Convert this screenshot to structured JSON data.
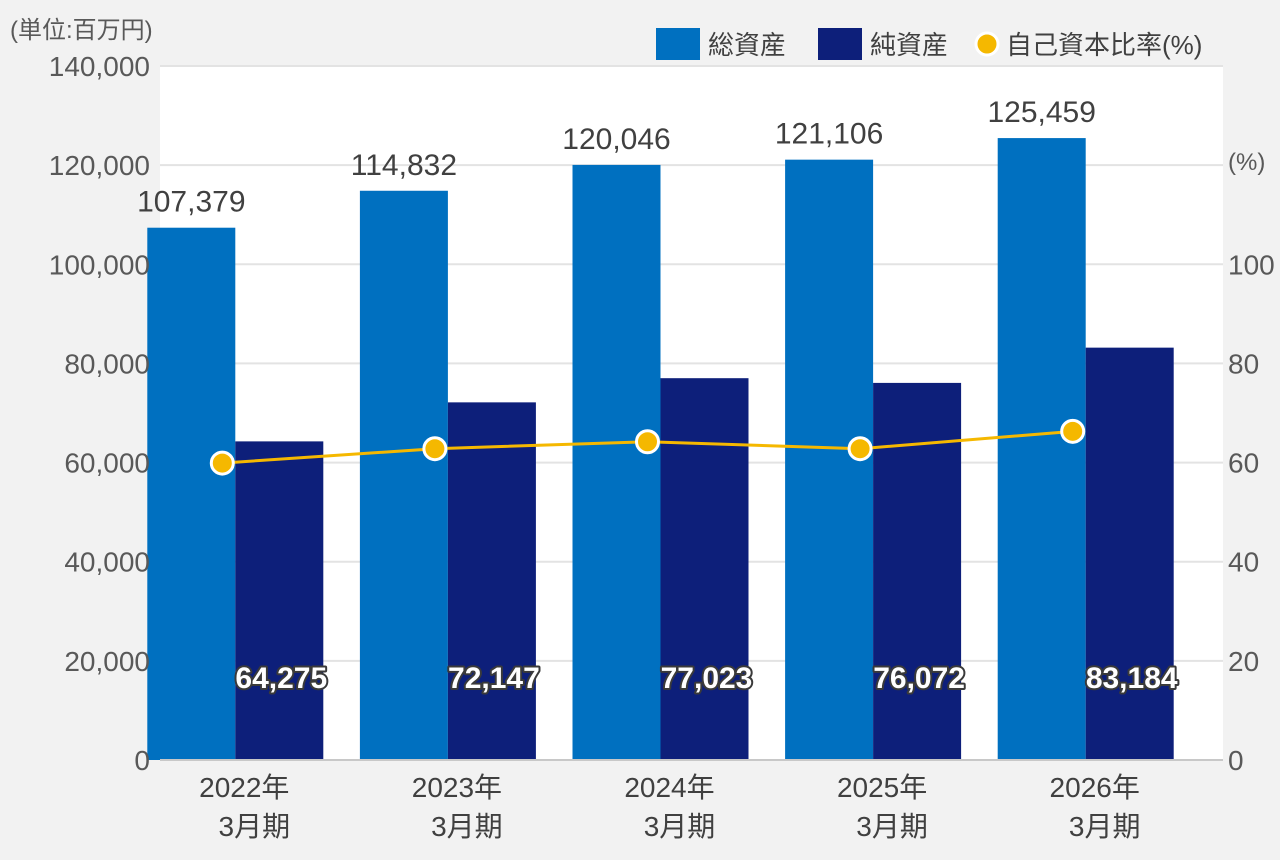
{
  "chart_data": {
    "type": "bar",
    "unit_label": "(単位:百万円)",
    "right_unit_label": "(%)",
    "categories": [
      [
        "2022年",
        "3月期"
      ],
      [
        "2023年",
        "3月期"
      ],
      [
        "2024年",
        "3月期"
      ],
      [
        "2025年",
        "3月期"
      ],
      [
        "2026年",
        "3月期"
      ]
    ],
    "series": [
      {
        "name": "総資産",
        "type": "bar",
        "axis": "left",
        "color": "#0070c0",
        "values": [
          107379,
          114832,
          120046,
          121106,
          125459
        ],
        "labels": [
          "107,379",
          "114,832",
          "120,046",
          "121,106",
          "125,459"
        ]
      },
      {
        "name": "純資産",
        "type": "bar",
        "axis": "left",
        "color": "#0d1f7a",
        "values": [
          64275,
          72147,
          77023,
          76072,
          83184
        ],
        "labels": [
          "64,275",
          "72,147",
          "77,023",
          "76,072",
          "83,184"
        ]
      },
      {
        "name": "自己資本比率(%)",
        "type": "line",
        "axis": "right",
        "color": "#f5b800",
        "values": [
          59.9,
          62.8,
          64.2,
          62.8,
          66.3
        ]
      }
    ],
    "left_axis": {
      "min": 0,
      "max": 140000,
      "ticks": [
        "0",
        "20,000",
        "40,000",
        "60,000",
        "80,000",
        "100,000",
        "120,000",
        "140,000"
      ]
    },
    "right_axis": {
      "min": 0,
      "max": 140,
      "ticks": [
        "0",
        "20",
        "40",
        "60",
        "80",
        "100"
      ]
    },
    "grid": true,
    "legend_position": "top-right"
  }
}
